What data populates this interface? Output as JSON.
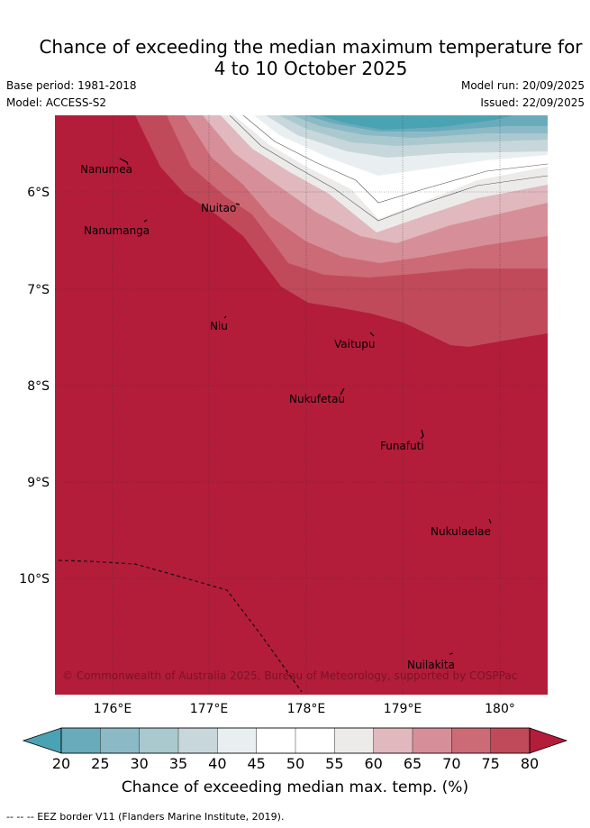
{
  "title": {
    "line1": "Chance of exceeding the median maximum temperature for",
    "line2": "4 to 10 October 2025"
  },
  "meta": {
    "base_period": "Base period: 1981-2018",
    "model": "Model: ACCESS-S2",
    "model_run": "Model run: 20/09/2025",
    "issued": "Issued: 22/09/2025"
  },
  "axes": {
    "lon_ticks": [
      "176°E",
      "177°E",
      "178°E",
      "179°E",
      "180°"
    ],
    "lat_ticks": [
      "6°S",
      "7°S",
      "8°S",
      "9°S",
      "10°S"
    ]
  },
  "places": [
    "Nanumea",
    "Nanumanga",
    "Nuitao",
    "Niu",
    "Vaitupu",
    "Nukufetau",
    "Funafuti",
    "Nukulaelae",
    "Nuilakita"
  ],
  "copyright": "© Commonwealth of Australia 2025, Bureau of Meteorology, supported by COSPPac",
  "colorbar": {
    "ticks": [
      "20",
      "25",
      "30",
      "35",
      "40",
      "45",
      "50",
      "55",
      "60",
      "65",
      "70",
      "75",
      "80"
    ],
    "colors": [
      "#6aabbb",
      "#8bbac6",
      "#aac9cf",
      "#c8d7db",
      "#e9eff1",
      "#ffffff",
      "#ffffff",
      "#ecebea",
      "#e0b8be",
      "#d68f98",
      "#cc6a76",
      "#c04a5a",
      "#b31d3a"
    ],
    "low_color": "#4aa3b3",
    "high_color": "#b31d3a",
    "label": "Chance of exceeding median max. temp. (%)"
  },
  "footnote": "--  --  -- EEZ border V11 (Flanders Marine Institute, 2019)."
}
